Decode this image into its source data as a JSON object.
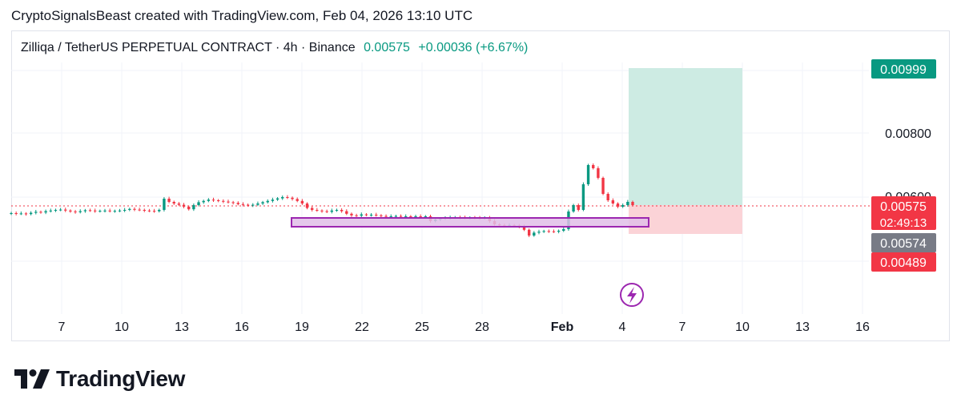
{
  "header": {
    "caption": "CryptoSignalsBeast created with TradingView.com, Feb 04, 2026 13:10 UTC"
  },
  "legend": {
    "symbol": "Zilliqa / TetherUS PERPETUAL CONTRACT · 4h · Binance",
    "price": "0.00575",
    "change": "+0.00036 (+6.67%)"
  },
  "footer": {
    "brand": "TradingView"
  },
  "colors": {
    "up": "#089981",
    "down": "#f23645",
    "box_stroke": "#9c27b0",
    "box_fill": "#e1bee7",
    "target_zone": "#cdebe3",
    "stop_zone": "#fbd3d7",
    "grid": "#f0f3fa",
    "current_price_line": "#f23645"
  },
  "icons": {
    "lightning": "lightning-icon",
    "logo": "tradingview-logo-icon"
  },
  "chart_data": {
    "type": "candlestick",
    "title": "Zilliqa / TetherUS PERPETUAL CONTRACT · 4h · Binance",
    "x_tick_labels": [
      "7",
      "10",
      "13",
      "16",
      "19",
      "22",
      "25",
      "28",
      "Feb",
      "4",
      "7",
      "10",
      "13",
      "16"
    ],
    "y_tick_labels": [
      "0.00800",
      "0.00600"
    ],
    "ylim": [
      0.004,
      0.0105
    ],
    "price_tags": [
      {
        "value": 0.00999,
        "label": "0.00999",
        "kind": "target"
      },
      {
        "value": 0.00575,
        "label": "0.00575",
        "sublabel": "02:49:13",
        "kind": "last"
      },
      {
        "value": 0.00574,
        "label": "0.00574",
        "kind": "mark"
      },
      {
        "value": 0.00489,
        "label": "0.00489",
        "kind": "stop"
      }
    ],
    "position": {
      "entry": 0.00575,
      "target": 0.00999,
      "stop": 0.00489,
      "start_x": "Feb 4",
      "end_x": "10"
    },
    "support_zone": {
      "top": 0.00563,
      "bottom": 0.00553,
      "start_x": "19",
      "end_x": "5"
    },
    "close_series": [
      0.0055,
      0.00548,
      0.00549,
      0.00547,
      0.00551,
      0.00554,
      0.00552,
      0.00556,
      0.00558,
      0.0056,
      0.00561,
      0.00558,
      0.00555,
      0.00553,
      0.00556,
      0.00559,
      0.00558,
      0.00556,
      0.00557,
      0.00558,
      0.00556,
      0.00557,
      0.00558,
      0.0056,
      0.00563,
      0.00561,
      0.0056,
      0.00558,
      0.00557,
      0.00556,
      0.0056,
      0.00595,
      0.00585,
      0.0058,
      0.00576,
      0.0057,
      0.00562,
      0.00575,
      0.00584,
      0.00588,
      0.00592,
      0.0059,
      0.00588,
      0.00586,
      0.00584,
      0.00582,
      0.00578,
      0.00576,
      0.00574,
      0.00576,
      0.0058,
      0.00584,
      0.00588,
      0.00592,
      0.00596,
      0.006,
      0.00598,
      0.00594,
      0.00588,
      0.0058,
      0.00566,
      0.0056,
      0.00558,
      0.00556,
      0.00554,
      0.00558,
      0.0056,
      0.00556,
      0.00548,
      0.00543,
      0.00542,
      0.00546,
      0.00544,
      0.00545,
      0.00543,
      0.00541,
      0.0054,
      0.0054,
      0.00541,
      0.00539,
      0.0054,
      0.00538,
      0.0054,
      0.00539,
      0.0054,
      0.00525,
      0.0053,
      0.00533,
      0.00535,
      0.00536,
      0.00537,
      0.00536,
      0.00535,
      0.00536,
      0.00535,
      0.00534,
      0.00536,
      0.00525,
      0.00515,
      0.00512,
      0.0051,
      0.00512,
      0.00511,
      0.00508,
      0.00498,
      0.0048,
      0.00489,
      0.00492,
      0.00494,
      0.00493,
      0.00492,
      0.00495,
      0.005,
      0.00555,
      0.00575,
      0.0056,
      0.0064,
      0.007,
      0.0069,
      0.0066,
      0.0061,
      0.0059,
      0.0058,
      0.0057,
      0.00575,
      0.00585,
      0.00575
    ]
  }
}
